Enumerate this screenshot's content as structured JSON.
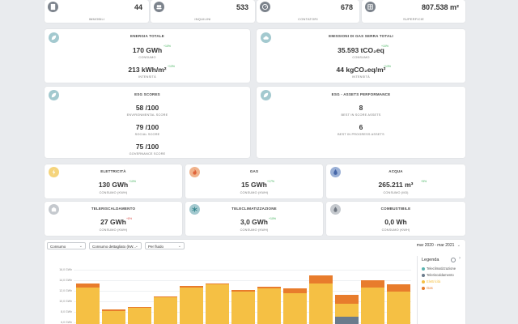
{
  "stats": [
    {
      "value": "44",
      "label": "IMMOBILI",
      "icon": "building-icon"
    },
    {
      "value": "533",
      "label": "INQUILINI",
      "icon": "users-icon"
    },
    {
      "value": "678",
      "label": "CONTATORI",
      "icon": "meter-icon"
    },
    {
      "value": "807.538 m²",
      "label": "SUPERFICIE",
      "icon": "area-icon"
    }
  ],
  "energy": {
    "title": "ENERGIA TOTALE",
    "v1": "170 GWh",
    "d1": "+10%",
    "l1": "CONSUMO",
    "v2": "213 kWh/m²",
    "d2": "+13%",
    "l2": "INTENSITÀ"
  },
  "emissions": {
    "title": "EMISSIONI DI GAS SERRA TOTALI",
    "v1": "35.593 tCO₂eq",
    "d1": "+10%",
    "l1": "CONSUMO",
    "v2": "44 kgCO₂eq/m²",
    "d2": "+13%",
    "l2": "INTENSITÀ"
  },
  "esg": {
    "title": "ESG SCORES",
    "env": "58 /100",
    "env_label": "ENVIRONMENTAL SCORE",
    "soc": "79 /100",
    "soc_label": "SOCIAL SCORE",
    "gov": "75 /100",
    "gov_label": "GOVERNANCE SCORE"
  },
  "assets": {
    "title": "ESG - ASSETS PERFORMANCE",
    "best": "8",
    "best_label": "BEST IN SCORE ASSETS",
    "prog": "6",
    "prog_label": "BEST IN PROGRESS ASSETS"
  },
  "utilities": [
    {
      "title": "ELETTRICITÀ",
      "value": "130 GWh",
      "delta": "+10%",
      "red": false,
      "label": "CONSUMO (KWH)",
      "icon": "bolt-icon"
    },
    {
      "title": "GAS",
      "value": "15 GWh",
      "delta": "+17%",
      "red": false,
      "label": "CONSUMO (KWH)",
      "icon": "flame-icon"
    },
    {
      "title": "ACQUA",
      "value": "265.211 m³",
      "delta": "+5%",
      "red": false,
      "label": "CONSUMO (M3)",
      "icon": "drop-icon"
    },
    {
      "title": "TELERISCALDAMENTO",
      "value": "27 GWh",
      "delta": "+8%",
      "red": true,
      "label": "CONSUMO (KWH)",
      "icon": "district-heating-icon"
    },
    {
      "title": "TELECLIMATIZZAZIONE",
      "value": "3,0 GWh",
      "delta": "+10%",
      "red": false,
      "label": "CONSUMO (KWH)",
      "icon": "snowflake-icon"
    },
    {
      "title": "COMBUSTIBILE",
      "value": "0,0 Wh",
      "delta": "",
      "red": false,
      "label": "CONSUMO (KWH)",
      "icon": "fuel-icon"
    }
  ],
  "toolbar": {
    "metric": "Consumo",
    "detail": "Consumo dettagliato (kW...",
    "group": "Per fluido",
    "range": "mar 2020 - mar 2021"
  },
  "legend": {
    "title": "Legenda",
    "items": [
      "Teleclimatizzazione",
      "Teleriscaldamento",
      "Elettricità",
      "Gas"
    ],
    "colors": [
      "#5ab3b0",
      "#6b7b8c",
      "#f5c044",
      "#e87c2c"
    ]
  },
  "chart_data": {
    "type": "bar",
    "stacked": true,
    "y_ticks": [
      "16,0 GWh",
      "14,0 GWh",
      "12,0 GWh",
      "10,0 GWh",
      "8,0 GWh",
      "6,0 GWh",
      "4,0 GWh"
    ],
    "series": [
      {
        "name": "Teleriscaldamento",
        "values": [
          0,
          0,
          0,
          0,
          0,
          0,
          0,
          0,
          0,
          0,
          4.3,
          0,
          0
        ],
        "color": "#6b7b8c"
      },
      {
        "name": "Elettricità",
        "values": [
          12.6,
          8.1,
          8.8,
          10.8,
          12.6,
          13.2,
          11.8,
          12.4,
          11.6,
          13.4,
          9.6,
          12.6,
          11.8
        ],
        "color": "#f5c044"
      },
      {
        "name": "Gas",
        "values": [
          0.8,
          0.4,
          0.2,
          0.2,
          0.3,
          0.2,
          0.3,
          0.3,
          0.8,
          1.6,
          1.6,
          1.4,
          1.4
        ],
        "color": "#e87c2c"
      }
    ]
  }
}
